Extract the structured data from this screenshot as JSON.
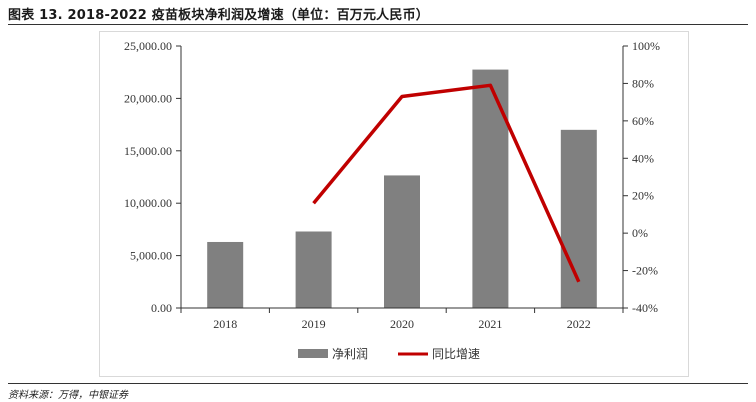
{
  "page": {
    "title": "图表 13. 2018-2022 疫苗板块净利润及增速（单位：百万元人民币）",
    "source": "资料来源：万得，中银证券"
  },
  "chart_data": {
    "type": "bar",
    "categories": [
      "2018",
      "2019",
      "2020",
      "2021",
      "2022"
    ],
    "series": [
      {
        "name": "净利润",
        "type": "bar",
        "axis": "left",
        "color": "#808080",
        "values": [
          6300,
          7300,
          12650,
          22750,
          17000
        ]
      },
      {
        "name": "同比增速",
        "type": "line",
        "axis": "right",
        "color": "#c00000",
        "values": [
          null,
          16,
          73,
          79,
          -26
        ]
      }
    ],
    "y_left": {
      "ylim": [
        0,
        25000
      ],
      "ticks": [
        0,
        5000,
        10000,
        15000,
        20000,
        25000
      ],
      "tick_labels": [
        "0.00",
        "5,000.00",
        "10,000.00",
        "15,000.00",
        "20,000.00",
        "25,000.00"
      ]
    },
    "y_right": {
      "ylim": [
        -40,
        100
      ],
      "ticks": [
        -40,
        -20,
        0,
        20,
        40,
        60,
        80,
        100
      ],
      "tick_labels": [
        "-40%",
        "-20%",
        "0%",
        "20%",
        "40%",
        "60%",
        "80%",
        "100%"
      ]
    },
    "grid": false,
    "legend_position": "bottom-center"
  }
}
